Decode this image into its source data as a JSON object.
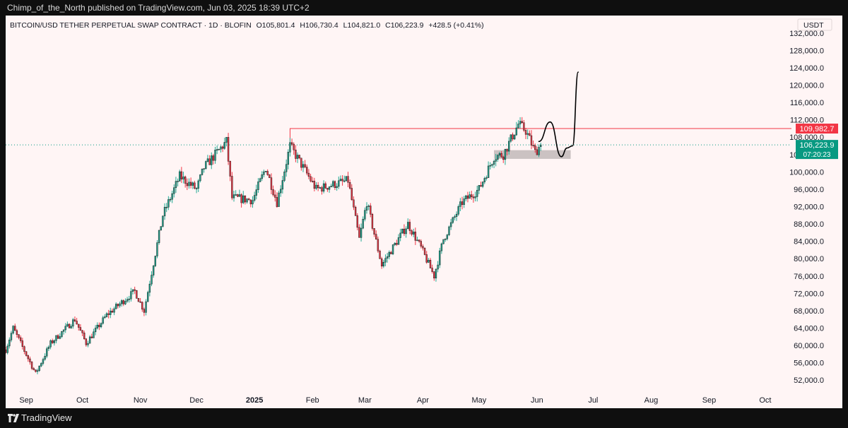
{
  "header": {
    "publisher_line": "Chimp_of_the_North published on TradingView.com, Jun 03, 2025 18:39 UTC+2"
  },
  "chart": {
    "symbol_line": "BITCOIN/USD TETHER PERPETUAL SWAP CONTRACT · 1D · BLOFIN",
    "open": "O105,801.4",
    "high": "H106,730.4",
    "low": "L104,821.0",
    "close": "C106,223.9",
    "change": "+428.5 (+0.41%)",
    "currency": "USDT",
    "resistance_label": "109,982.7",
    "last_price_label": "106,223.9",
    "countdown_label": "07:20:23"
  },
  "colors": {
    "background": "#fff5f5",
    "up": "#22ab94",
    "down": "#f23645",
    "candle_body": "#1a1a1a",
    "resistance": "#f23645",
    "last_price": "#089981",
    "zone": "#9e9e9e"
  },
  "footer": {
    "brand": "TradingView"
  },
  "chart_data": {
    "type": "candlestick",
    "title": "BITCOIN/USD TETHER PERPETUAL SWAP CONTRACT · 1D · BLOFIN",
    "x_axis_labels": [
      "Sep",
      "Oct",
      "Nov",
      "Dec",
      "2025",
      "Feb",
      "Mar",
      "Apr",
      "May",
      "Jun",
      "Jul",
      "Aug",
      "Sep",
      "Oct"
    ],
    "x_range": [
      "2024-08-21",
      "2025-10-15"
    ],
    "y_ticks": [
      52000,
      56000,
      60000,
      64000,
      68000,
      72000,
      76000,
      80000,
      84000,
      88000,
      92000,
      96000,
      100000,
      104000,
      108000,
      112000,
      116000,
      120000,
      124000,
      128000,
      132000
    ],
    "ylim": [
      50000,
      134000
    ],
    "resistance_level": 109982.7,
    "last_price": 106223.9,
    "support_zone": {
      "date_from": "2025-05-09",
      "date_to": "2025-06-19",
      "low": 103000,
      "high": 105000
    },
    "projection_path": [
      {
        "date": "2025-06-02",
        "price": 107000
      },
      {
        "date": "2025-06-08",
        "price": 111500
      },
      {
        "date": "2025-06-14",
        "price": 103500
      },
      {
        "date": "2025-06-17",
        "price": 105500
      },
      {
        "date": "2025-06-20",
        "price": 106000
      },
      {
        "date": "2025-06-23",
        "price": 123000
      }
    ],
    "price_path": [
      {
        "date": "2024-08-21",
        "price": 59000
      },
      {
        "date": "2024-08-25",
        "price": 64000
      },
      {
        "date": "2024-09-06",
        "price": 53500
      },
      {
        "date": "2024-09-14",
        "price": 60500
      },
      {
        "date": "2024-09-27",
        "price": 66000
      },
      {
        "date": "2024-10-03",
        "price": 60500
      },
      {
        "date": "2024-10-14",
        "price": 67000
      },
      {
        "date": "2024-10-29",
        "price": 72500
      },
      {
        "date": "2024-11-03",
        "price": 68000
      },
      {
        "date": "2024-11-13",
        "price": 90000
      },
      {
        "date": "2024-11-22",
        "price": 99000
      },
      {
        "date": "2024-12-01",
        "price": 96000
      },
      {
        "date": "2024-12-05",
        "price": 101000
      },
      {
        "date": "2024-12-17",
        "price": 107000
      },
      {
        "date": "2024-12-20",
        "price": 94000
      },
      {
        "date": "2024-12-31",
        "price": 93500
      },
      {
        "date": "2025-01-07",
        "price": 101000
      },
      {
        "date": "2025-01-13",
        "price": 93000
      },
      {
        "date": "2025-01-20",
        "price": 106000
      },
      {
        "date": "2025-01-27",
        "price": 101000
      },
      {
        "date": "2025-02-03",
        "price": 96000
      },
      {
        "date": "2025-02-20",
        "price": 98000
      },
      {
        "date": "2025-02-26",
        "price": 84500
      },
      {
        "date": "2025-03-02",
        "price": 93000
      },
      {
        "date": "2025-03-10",
        "price": 78500
      },
      {
        "date": "2025-03-24",
        "price": 88000
      },
      {
        "date": "2025-03-31",
        "price": 82500
      },
      {
        "date": "2025-04-07",
        "price": 76000
      },
      {
        "date": "2025-04-12",
        "price": 84500
      },
      {
        "date": "2025-04-22",
        "price": 93000
      },
      {
        "date": "2025-05-01",
        "price": 96000
      },
      {
        "date": "2025-05-09",
        "price": 103500
      },
      {
        "date": "2025-05-14",
        "price": 104000
      },
      {
        "date": "2025-05-22",
        "price": 111000
      },
      {
        "date": "2025-05-26",
        "price": 109500
      },
      {
        "date": "2025-05-31",
        "price": 104500
      },
      {
        "date": "2025-06-03",
        "price": 106224
      }
    ]
  }
}
